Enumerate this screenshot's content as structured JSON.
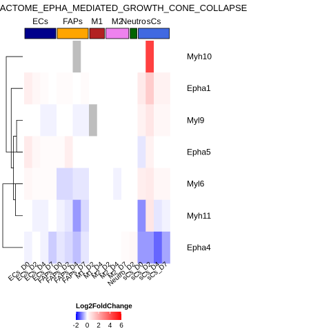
{
  "chart_data": {
    "type": "heatmap",
    "title": "REACTOME_EPHA_MEDIATED_GROWTH_CONE_COLLAPSE",
    "columns": [
      "ECs_D0",
      "ECs_D2",
      "ECs_D4",
      "ECs_D7",
      "FAPs_D0",
      "FAPs_D2",
      "FAPs_D4",
      "FAPs_D7",
      "M1_D2",
      "M1_D4",
      "M2_D2",
      "M2_D4",
      "M2_D7",
      "Neutro_D2",
      "sCs_D0",
      "sCs_D2",
      "sCs_D4",
      "sCs_D7"
    ],
    "rows": [
      "Myh10",
      "Epha1",
      "Myl9",
      "Epha5",
      "Myl6",
      "Myh11",
      "Epha4"
    ],
    "column_groups": [
      {
        "name": "ECs",
        "color": "#00008B",
        "span": 4
      },
      {
        "name": "FAPs",
        "color": "#FFA500",
        "span": 4
      },
      {
        "name": "M1",
        "color": "#B22222",
        "span": 2
      },
      {
        "name": "M2",
        "color": "#EE82EE",
        "span": 3
      },
      {
        "name": "Neutro",
        "color": "#006400",
        "span": 1
      },
      {
        "name": "sCs",
        "color": "#4169E1",
        "span": 4
      }
    ],
    "values": [
      [
        0,
        0,
        0,
        0,
        0,
        0,
        null,
        0,
        0,
        0,
        0,
        0,
        0,
        0,
        0,
        4.5,
        0,
        0
      ],
      [
        0.4,
        0.2,
        0.1,
        0,
        0.1,
        0.1,
        0,
        0.1,
        0,
        0,
        0,
        0,
        0,
        0,
        0.5,
        1.2,
        0.3,
        0.3
      ],
      [
        0,
        0,
        -0.1,
        -0.1,
        0,
        0,
        -0.1,
        -0.1,
        null,
        0,
        0,
        0,
        0,
        0,
        0.3,
        0.6,
        0.2,
        0.2
      ],
      [
        0.5,
        0.2,
        0.1,
        0.1,
        0.1,
        0.4,
        0,
        0,
        0,
        0,
        0,
        0,
        0,
        0,
        -0.2,
        0.3,
        0,
        0
      ],
      [
        0.2,
        0.1,
        0.1,
        0.1,
        -0.3,
        -0.3,
        -0.2,
        -0.2,
        0,
        0,
        0,
        -0.1,
        0,
        0,
        0.4,
        0.5,
        0.2,
        0.2
      ],
      [
        0,
        -0.1,
        -0.1,
        0,
        -0.1,
        -0.2,
        -0.8,
        -0.3,
        0,
        0,
        0,
        0,
        0,
        0,
        -0.9,
        0.6,
        -0.2,
        -0.1
      ],
      [
        -0.1,
        0,
        -0.1,
        -0.4,
        -0.2,
        -0.3,
        -0.5,
        -0.2,
        0,
        0,
        0,
        0,
        0.1,
        0.2,
        -0.8,
        -0.8,
        -1.2,
        -0.7
      ]
    ],
    "na_color": "#BEBEBE",
    "legend": {
      "title": "Log2FoldChange",
      "ticks": [
        -2,
        0,
        2,
        4,
        6
      ],
      "range": [
        -2,
        6
      ],
      "colors": {
        "low": "#0000FF",
        "mid": "#FFFFFF",
        "high": "#FF0000"
      },
      "placement": "bottom"
    },
    "dendrogram": {
      "side": "left",
      "merges": [
        [
          2,
          3,
          1.6
        ],
        [
          4,
          5,
          1.9
        ],
        [
          -1,
          -2,
          2.4
        ],
        [
          -3,
          1,
          3.0
        ],
        [
          0,
          3,
          4.3
        ],
        [
          6,
          4,
          5.2
        ]
      ]
    }
  }
}
